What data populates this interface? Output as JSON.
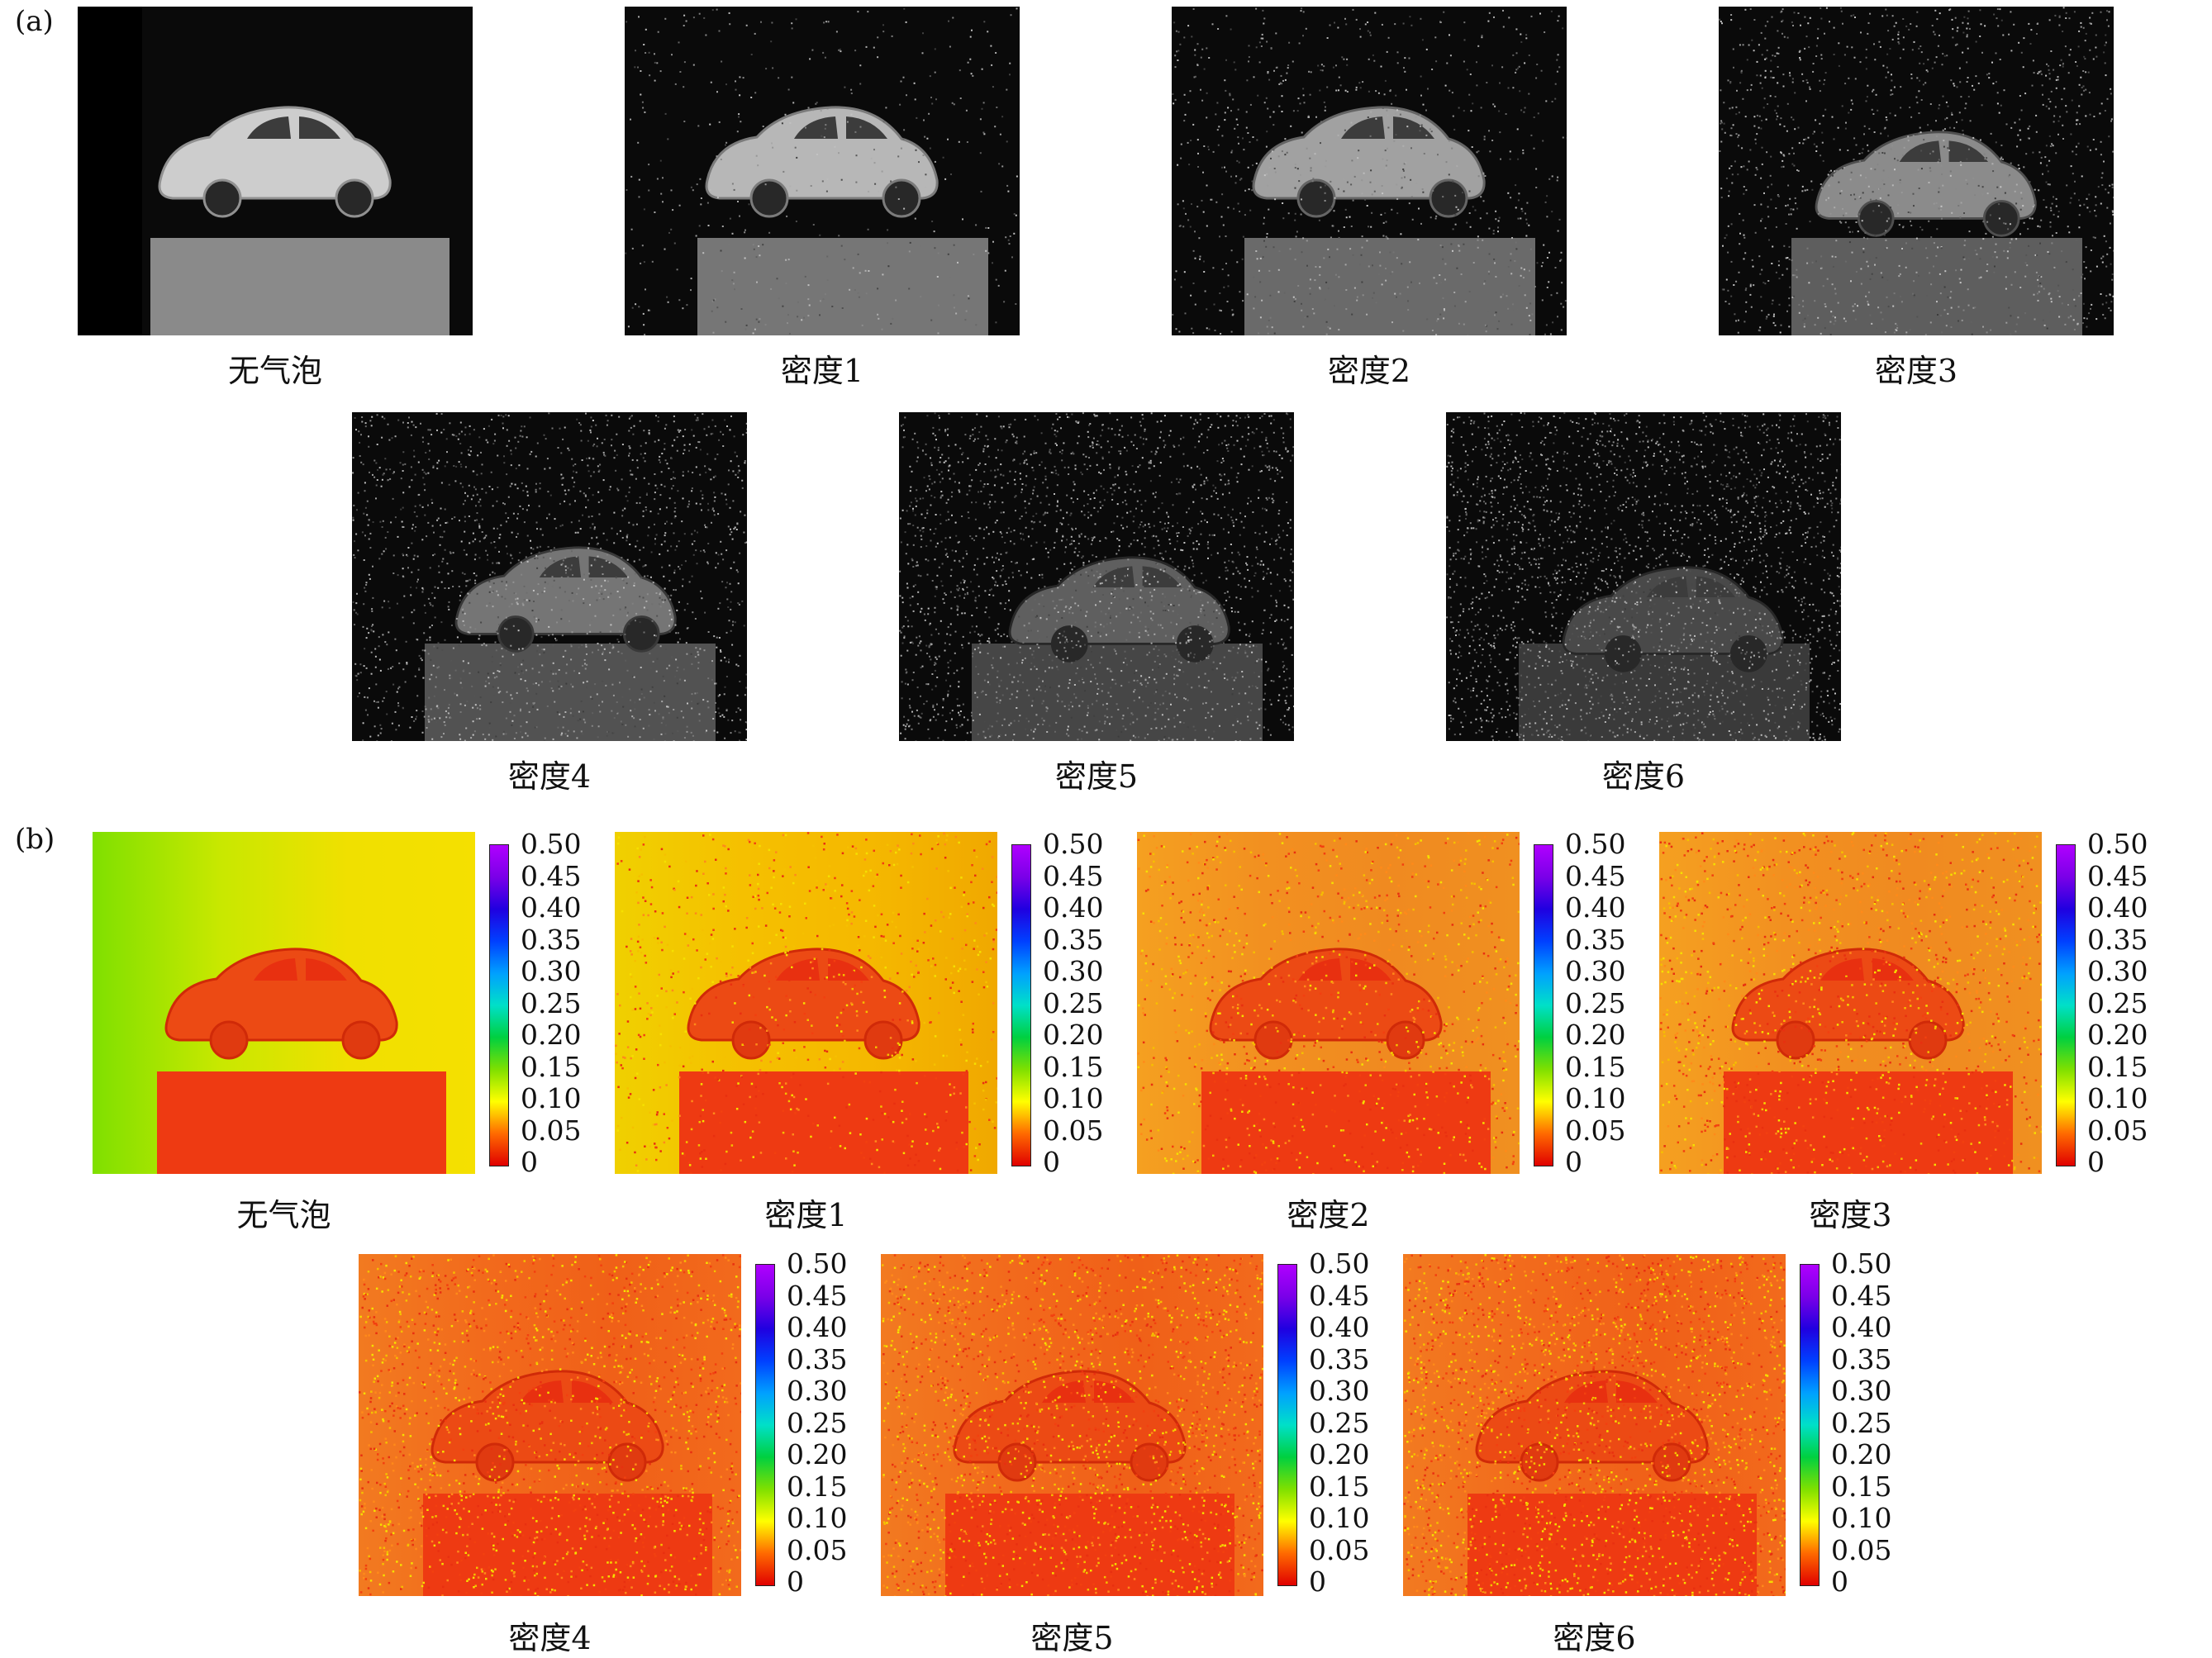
{
  "panels": {
    "a": {
      "label": "(a)",
      "captions": [
        "无气泡",
        "密度1",
        "密度2",
        "密度3",
        "密度4",
        "密度5",
        "密度6"
      ]
    },
    "b": {
      "label": "(b)",
      "captions": [
        "无气泡",
        "密度1",
        "密度2",
        "密度3",
        "密度4",
        "密度5",
        "密度6"
      ],
      "colorbar_ticks": [
        "0.50",
        "0.45",
        "0.40",
        "0.35",
        "0.30",
        "0.25",
        "0.20",
        "0.15",
        "0.10",
        "0.05",
        "0"
      ]
    }
  },
  "colors": {
    "background": "#ffffff",
    "photo_dark": "#0a0a0a",
    "map_red": "#ee3a12",
    "map_orange": "#f5a623",
    "map_yellow": "#f5e000",
    "map_green": "#7fe000"
  },
  "noise_levels": [
    0,
    1,
    2,
    3,
    4,
    5,
    6
  ]
}
